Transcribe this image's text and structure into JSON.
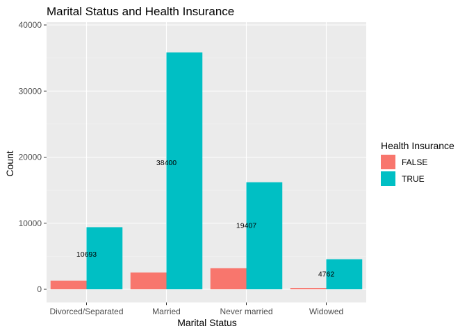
{
  "chart_data": {
    "type": "bar",
    "title": "Marital Status and Health Insurance",
    "xlabel": "Marital Status",
    "ylabel": "Count",
    "categories": [
      "Divorced/Separated",
      "Married",
      "Never married",
      "Widowed"
    ],
    "series": [
      {
        "name": "FALSE",
        "values": [
          1300,
          2550,
          3200,
          200
        ]
      },
      {
        "name": "TRUE",
        "values": [
          9400,
          35850,
          16200,
          4550
        ]
      }
    ],
    "data_labels": [
      "10693",
      "38400",
      "19407",
      "4762"
    ],
    "ylim": [
      -1800,
      40000
    ],
    "y_ticks": [
      0,
      10000,
      20000,
      30000,
      40000
    ],
    "y_tick_labels": [
      "0",
      "10000",
      "20000",
      "30000",
      "40000"
    ],
    "grid": true,
    "legend": {
      "title": "Health Insurance",
      "position": "right",
      "entries": [
        "FALSE",
        "TRUE"
      ]
    },
    "colors": {
      "FALSE": "#F8766D",
      "TRUE": "#00BFC4",
      "panel": "#EBEBEB",
      "grid_major": "#FFFFFF",
      "grid_minor": "#F5F5F5"
    }
  }
}
